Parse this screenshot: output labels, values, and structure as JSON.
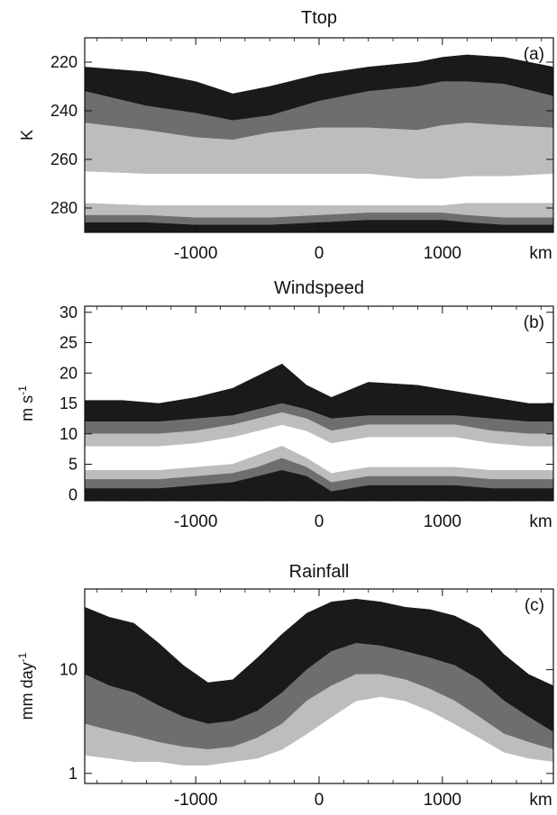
{
  "palette": {
    "black": "#1a1a1a",
    "dark_gray": "#6e6e6e",
    "light_gray": "#bdbdbd",
    "white": "#ffffff"
  },
  "chart_data": [
    {
      "type": "area",
      "title": "Ttop",
      "panel_label": "(a)",
      "xlabel": "km",
      "ylabel": "K",
      "x_ticks": [
        "-1000",
        "0",
        "1000"
      ],
      "y_ticks": [
        "220",
        "240",
        "260",
        "280"
      ],
      "xlim": [
        -1900,
        1900
      ],
      "ylim": [
        290,
        210
      ],
      "y_inverted": true,
      "grid": false,
      "x": [
        -1900,
        -1400,
        -1000,
        -700,
        -400,
        0,
        400,
        800,
        1000,
        1200,
        1500,
        1900
      ],
      "bands": [
        {
          "name": "black-top",
          "color": "black",
          "lower": [
            222,
            224,
            228,
            233,
            230,
            225,
            222,
            220,
            218,
            217,
            218,
            222
          ],
          "upper": [
            232,
            238,
            241,
            244,
            242,
            236,
            232,
            230,
            228,
            228,
            229,
            234
          ]
        },
        {
          "name": "dark-gray",
          "color": "dark_gray",
          "lower": [
            232,
            238,
            241,
            244,
            242,
            236,
            232,
            230,
            228,
            228,
            229,
            234
          ],
          "upper": [
            245,
            248,
            251,
            252,
            249,
            247,
            247,
            248,
            246,
            245,
            246,
            247
          ]
        },
        {
          "name": "light-gray",
          "color": "light_gray",
          "lower": [
            245,
            248,
            251,
            252,
            249,
            247,
            247,
            248,
            246,
            245,
            246,
            247
          ],
          "upper": [
            265,
            266,
            266,
            266,
            266,
            266,
            266,
            268,
            268,
            267,
            267,
            266
          ]
        },
        {
          "name": "white-inner",
          "color": "white",
          "lower": [
            265,
            266,
            266,
            266,
            266,
            266,
            266,
            268,
            268,
            267,
            267,
            266
          ],
          "upper": [
            278,
            279,
            279,
            279,
            279,
            279,
            279,
            279,
            279,
            278,
            278,
            278
          ]
        },
        {
          "name": "light-gray-bottom",
          "color": "light_gray",
          "lower": [
            278,
            279,
            279,
            279,
            279,
            279,
            279,
            279,
            279,
            278,
            278,
            278
          ],
          "upper": [
            283,
            283,
            284,
            284,
            284,
            283,
            282,
            282,
            282,
            283,
            284,
            284
          ]
        },
        {
          "name": "dark-gray-bottom",
          "color": "dark_gray",
          "lower": [
            283,
            283,
            284,
            284,
            284,
            283,
            282,
            282,
            282,
            283,
            284,
            284
          ],
          "upper": [
            286,
            286,
            287,
            287,
            287,
            286,
            285,
            285,
            285,
            286,
            287,
            287
          ]
        },
        {
          "name": "black-bottom",
          "color": "black",
          "lower": [
            286,
            286,
            287,
            287,
            287,
            286,
            285,
            285,
            285,
            286,
            287,
            287
          ],
          "upper": [
            290,
            290,
            290,
            290,
            290,
            290,
            290,
            290,
            290,
            290,
            290,
            290
          ]
        }
      ]
    },
    {
      "type": "area",
      "title": "Windspeed",
      "panel_label": "(b)",
      "xlabel": "km",
      "ylabel": "m s-1",
      "x_ticks": [
        "-1000",
        "0",
        "1000"
      ],
      "y_ticks": [
        "0",
        "5",
        "10",
        "15",
        "20",
        "25",
        "30"
      ],
      "xlim": [
        -1900,
        1900
      ],
      "ylim": [
        -1,
        31
      ],
      "grid": false,
      "x": [
        -1900,
        -1600,
        -1300,
        -1000,
        -700,
        -500,
        -300,
        -100,
        100,
        400,
        800,
        1100,
        1400,
        1700,
        1900
      ],
      "bands": [
        {
          "name": "black-top",
          "color": "black",
          "upper": [
            15.5,
            15.5,
            15,
            16,
            17.5,
            19.5,
            21.5,
            18,
            16,
            18.5,
            18,
            17,
            16,
            15,
            15
          ],
          "lower": [
            12,
            12,
            12,
            12.5,
            13,
            14,
            15,
            14,
            12.5,
            13,
            13,
            13,
            12.5,
            12,
            12
          ]
        },
        {
          "name": "dark-gray-upper",
          "color": "dark_gray",
          "upper": [
            12,
            12,
            12,
            12.5,
            13,
            14,
            15,
            14,
            12.5,
            13,
            13,
            13,
            12.5,
            12,
            12
          ],
          "lower": [
            10,
            10,
            10,
            10.5,
            11.5,
            12.5,
            13.5,
            12.5,
            10.5,
            11.5,
            11.5,
            11.5,
            10.5,
            10,
            10
          ]
        },
        {
          "name": "light-gray-upper",
          "color": "light_gray",
          "upper": [
            10,
            10,
            10,
            10.5,
            11.5,
            12.5,
            13.5,
            12.5,
            10.5,
            11.5,
            11.5,
            11.5,
            10.5,
            10,
            10
          ],
          "lower": [
            8,
            8,
            8,
            8.5,
            9.5,
            10.5,
            11.5,
            10.5,
            8.5,
            9.5,
            9.5,
            9.5,
            8.5,
            8,
            8
          ]
        },
        {
          "name": "light-gray-lower",
          "color": "light_gray",
          "upper": [
            4,
            4,
            4,
            4.5,
            5,
            6.5,
            8,
            6,
            3.5,
            4.5,
            4.5,
            4.5,
            4,
            4,
            4
          ],
          "lower": [
            2.5,
            2.5,
            2.5,
            3,
            3.5,
            4.5,
            6,
            4.5,
            2,
            3,
            3,
            3,
            2.5,
            2.5,
            2.5
          ]
        },
        {
          "name": "dark-gray-lower",
          "color": "dark_gray",
          "upper": [
            2.5,
            2.5,
            2.5,
            3,
            3.5,
            4.5,
            6,
            4.5,
            2,
            3,
            3,
            3,
            2.5,
            2.5,
            2.5
          ],
          "lower": [
            1,
            1,
            1,
            1.5,
            2,
            3,
            4,
            3,
            0.5,
            1.5,
            1.5,
            1.5,
            1,
            1,
            1
          ]
        },
        {
          "name": "black-bottom",
          "color": "black",
          "upper": [
            1,
            1,
            1,
            1.5,
            2,
            3,
            4,
            3,
            0.5,
            1.5,
            1.5,
            1.5,
            1,
            1,
            1
          ],
          "lower": [
            -1,
            -1,
            -1,
            -1,
            -1,
            -1,
            -1,
            -1,
            -1,
            -1,
            -1,
            -1,
            -1,
            -1,
            -1
          ]
        }
      ]
    },
    {
      "type": "area",
      "title": "Rainfall",
      "panel_label": "(c)",
      "xlabel": "km",
      "ylabel": "mm day-1",
      "x_ticks": [
        "-1000",
        "0",
        "1000"
      ],
      "y_ticks": [
        "1",
        "10"
      ],
      "y_scale": "log",
      "xlim": [
        -1900,
        1900
      ],
      "ylim": [
        0.8,
        60
      ],
      "grid": false,
      "x": [
        -1900,
        -1700,
        -1500,
        -1300,
        -1100,
        -900,
        -700,
        -500,
        -300,
        -100,
        100,
        300,
        500,
        700,
        900,
        1100,
        1300,
        1500,
        1700,
        1900
      ],
      "bands": [
        {
          "name": "black",
          "color": "black",
          "upper": [
            40,
            32,
            28,
            18,
            11,
            7.5,
            8,
            13,
            22,
            35,
            45,
            48,
            45,
            40,
            38,
            33,
            25,
            14,
            9,
            7
          ],
          "lower": [
            9,
            7,
            6,
            4.5,
            3.5,
            3,
            3.2,
            4,
            6,
            10,
            15,
            18,
            17,
            15,
            13,
            11,
            8,
            5,
            3.5,
            2.5
          ]
        },
        {
          "name": "dark-gray",
          "color": "dark_gray",
          "upper": [
            9,
            7,
            6,
            4.5,
            3.5,
            3,
            3.2,
            4,
            6,
            10,
            15,
            18,
            17,
            15,
            13,
            11,
            8,
            5,
            3.5,
            2.5
          ],
          "lower": [
            3,
            2.6,
            2.3,
            2,
            1.8,
            1.7,
            1.8,
            2.2,
            3,
            5,
            7,
            9,
            9,
            8,
            6.5,
            5,
            3.5,
            2.4,
            2,
            1.7
          ]
        },
        {
          "name": "light-gray",
          "color": "light_gray",
          "upper": [
            3,
            2.6,
            2.3,
            2,
            1.8,
            1.7,
            1.8,
            2.2,
            3,
            5,
            7,
            9,
            9,
            8,
            6.5,
            5,
            3.5,
            2.4,
            2,
            1.7
          ],
          "lower": [
            1.5,
            1.4,
            1.3,
            1.3,
            1.2,
            1.2,
            1.3,
            1.4,
            1.7,
            2.4,
            3.5,
            5,
            5.5,
            5,
            4,
            3,
            2.2,
            1.6,
            1.4,
            1.3
          ]
        }
      ]
    }
  ]
}
